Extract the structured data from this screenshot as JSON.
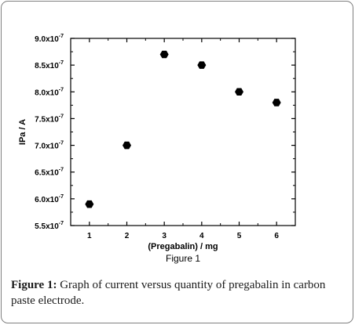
{
  "figure_label": "Figure 1",
  "caption": {
    "label": "Figure 1:",
    "text": " Graph of current versus quantity of pregabalin in carbon paste electrode."
  },
  "chart_data": {
    "type": "scatter",
    "xlabel": "(Pregabalin) / mg",
    "ylabel": "IPa / A",
    "x": [
      1,
      2,
      3,
      4,
      5,
      6
    ],
    "y": [
      5.9e-07,
      7e-07,
      8.7e-07,
      8.5e-07,
      8e-07,
      7.8e-07
    ],
    "xlim": [
      0.5,
      6.5
    ],
    "ylim": [
      5.5e-07,
      9e-07
    ],
    "x_ticks": [
      {
        "value": 1,
        "label": "1"
      },
      {
        "value": 2,
        "label": "2"
      },
      {
        "value": 3,
        "label": "3"
      },
      {
        "value": 4,
        "label": "4"
      },
      {
        "value": 5,
        "label": "5"
      },
      {
        "value": 6,
        "label": "6"
      }
    ],
    "y_ticks": [
      {
        "value": 5.5e-07,
        "label": "5.5x10",
        "exp": "-7"
      },
      {
        "value": 6e-07,
        "label": "6.0x10",
        "exp": "-7"
      },
      {
        "value": 6.5e-07,
        "label": "6.5x10",
        "exp": "-7"
      },
      {
        "value": 7e-07,
        "label": "7.0x10",
        "exp": "-7"
      },
      {
        "value": 7.5e-07,
        "label": "7.5x10",
        "exp": "-7"
      },
      {
        "value": 8e-07,
        "label": "8.0x10",
        "exp": "-7"
      },
      {
        "value": 8.5e-07,
        "label": "8.5x10",
        "exp": "-7"
      },
      {
        "value": 9e-07,
        "label": "9.0x10",
        "exp": "-7"
      }
    ],
    "grid": false,
    "marker": "hexagon",
    "marker_color": "#000000"
  }
}
